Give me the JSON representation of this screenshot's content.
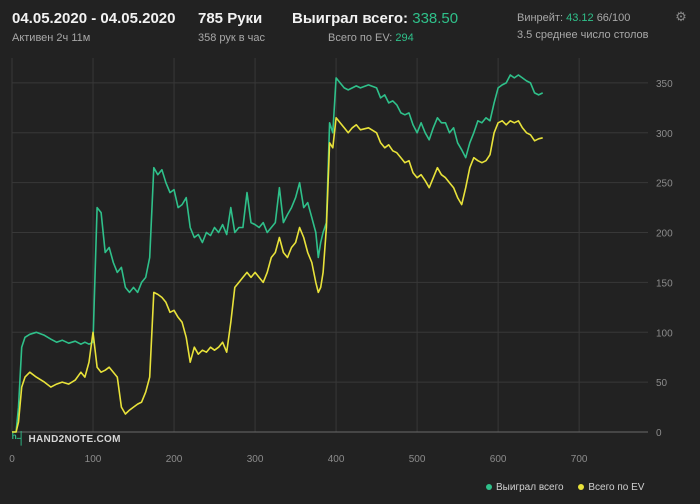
{
  "header": {
    "date_range": "04.05.2020 - 04.05.2020",
    "active": "Активен 2ч 11м",
    "hands": "785 Руки",
    "hands_per_hour": "358 рук в час",
    "won_label": "Выиграл всего:",
    "won_value": "338.50",
    "ev_label": "Всего по EV:",
    "ev_value": "294",
    "winrate_label": "Винрейт:",
    "winrate_value": "43.12",
    "winrate_rest": "66/100",
    "tables": "3.5 среднее число столов"
  },
  "logo_text": "HAND2NOTE.COM",
  "colors": {
    "background": "#222222",
    "won_series": "#2fc08a",
    "ev_series": "#e8e23a",
    "grid": "#383838",
    "zero_line": "#6a6a6a",
    "tick_text": "#8c8c8c"
  },
  "icons": {
    "settings": "gear-icon",
    "logo": "hand2note-logo-icon"
  },
  "chart_data": {
    "type": "line",
    "title": "",
    "xlabel": "",
    "ylabel": "",
    "xlim": [
      0,
      785
    ],
    "ylim": [
      0,
      375
    ],
    "xticks": [
      0,
      100,
      200,
      300,
      400,
      500,
      600,
      700
    ],
    "yticks": [
      0,
      50,
      100,
      150,
      200,
      250,
      300,
      350
    ],
    "y_axis_side": "right",
    "grid": true,
    "legend": "bottom-right",
    "series": [
      {
        "name": "Выиграл всего",
        "color": "#2fc08a",
        "points": [
          [
            0,
            0
          ],
          [
            5,
            0
          ],
          [
            8,
            25
          ],
          [
            12,
            85
          ],
          [
            16,
            95
          ],
          [
            22,
            98
          ],
          [
            30,
            100
          ],
          [
            40,
            97
          ],
          [
            48,
            93
          ],
          [
            55,
            90
          ],
          [
            62,
            92
          ],
          [
            70,
            89
          ],
          [
            78,
            91
          ],
          [
            85,
            88
          ],
          [
            90,
            90
          ],
          [
            95,
            88
          ],
          [
            100,
            90
          ],
          [
            105,
            225
          ],
          [
            110,
            220
          ],
          [
            115,
            180
          ],
          [
            120,
            185
          ],
          [
            125,
            170
          ],
          [
            130,
            160
          ],
          [
            135,
            165
          ],
          [
            140,
            145
          ],
          [
            145,
            140
          ],
          [
            150,
            145
          ],
          [
            155,
            140
          ],
          [
            160,
            150
          ],
          [
            165,
            155
          ],
          [
            170,
            175
          ],
          [
            175,
            265
          ],
          [
            180,
            258
          ],
          [
            185,
            263
          ],
          [
            190,
            250
          ],
          [
            195,
            240
          ],
          [
            200,
            243
          ],
          [
            205,
            225
          ],
          [
            210,
            228
          ],
          [
            215,
            235
          ],
          [
            220,
            205
          ],
          [
            225,
            195
          ],
          [
            230,
            198
          ],
          [
            235,
            190
          ],
          [
            240,
            200
          ],
          [
            245,
            197
          ],
          [
            250,
            205
          ],
          [
            255,
            200
          ],
          [
            260,
            208
          ],
          [
            265,
            198
          ],
          [
            270,
            225
          ],
          [
            275,
            200
          ],
          [
            280,
            205
          ],
          [
            285,
            205
          ],
          [
            290,
            240
          ],
          [
            295,
            210
          ],
          [
            300,
            208
          ],
          [
            305,
            205
          ],
          [
            310,
            210
          ],
          [
            315,
            200
          ],
          [
            320,
            205
          ],
          [
            325,
            210
          ],
          [
            330,
            245
          ],
          [
            335,
            210
          ],
          [
            340,
            218
          ],
          [
            345,
            225
          ],
          [
            350,
            235
          ],
          [
            355,
            250
          ],
          [
            360,
            225
          ],
          [
            365,
            230
          ],
          [
            370,
            215
          ],
          [
            375,
            200
          ],
          [
            378,
            175
          ],
          [
            381,
            190
          ],
          [
            384,
            200
          ],
          [
            388,
            210
          ],
          [
            392,
            310
          ],
          [
            396,
            300
          ],
          [
            400,
            355
          ],
          [
            405,
            350
          ],
          [
            410,
            345
          ],
          [
            415,
            343
          ],
          [
            420,
            345
          ],
          [
            425,
            347
          ],
          [
            430,
            345
          ],
          [
            440,
            348
          ],
          [
            450,
            345
          ],
          [
            455,
            335
          ],
          [
            460,
            338
          ],
          [
            465,
            330
          ],
          [
            470,
            332
          ],
          [
            475,
            328
          ],
          [
            480,
            320
          ],
          [
            485,
            318
          ],
          [
            490,
            320
          ],
          [
            495,
            308
          ],
          [
            500,
            300
          ],
          [
            505,
            310
          ],
          [
            510,
            300
          ],
          [
            515,
            293
          ],
          [
            520,
            305
          ],
          [
            525,
            315
          ],
          [
            530,
            310
          ],
          [
            535,
            310
          ],
          [
            540,
            300
          ],
          [
            545,
            305
          ],
          [
            550,
            290
          ],
          [
            555,
            283
          ],
          [
            560,
            275
          ],
          [
            565,
            290
          ],
          [
            570,
            300
          ],
          [
            575,
            312
          ],
          [
            580,
            310
          ],
          [
            585,
            315
          ],
          [
            590,
            312
          ],
          [
            595,
            330
          ],
          [
            600,
            345
          ],
          [
            605,
            348
          ],
          [
            610,
            350
          ],
          [
            615,
            358
          ],
          [
            620,
            355
          ],
          [
            625,
            358
          ],
          [
            630,
            355
          ],
          [
            635,
            352
          ],
          [
            640,
            350
          ],
          [
            645,
            340
          ],
          [
            650,
            338
          ],
          [
            655,
            340
          ]
        ]
      },
      {
        "name": "Всего по EV",
        "color": "#e8e23a",
        "points": [
          [
            0,
            0
          ],
          [
            5,
            0
          ],
          [
            8,
            10
          ],
          [
            12,
            45
          ],
          [
            16,
            55
          ],
          [
            22,
            60
          ],
          [
            30,
            55
          ],
          [
            40,
            50
          ],
          [
            48,
            45
          ],
          [
            55,
            48
          ],
          [
            62,
            50
          ],
          [
            70,
            48
          ],
          [
            78,
            52
          ],
          [
            85,
            60
          ],
          [
            90,
            55
          ],
          [
            95,
            70
          ],
          [
            100,
            100
          ],
          [
            105,
            65
          ],
          [
            110,
            60
          ],
          [
            115,
            62
          ],
          [
            120,
            65
          ],
          [
            125,
            60
          ],
          [
            130,
            55
          ],
          [
            135,
            25
          ],
          [
            140,
            18
          ],
          [
            145,
            22
          ],
          [
            150,
            25
          ],
          [
            155,
            28
          ],
          [
            160,
            30
          ],
          [
            165,
            40
          ],
          [
            170,
            55
          ],
          [
            175,
            140
          ],
          [
            180,
            138
          ],
          [
            185,
            135
          ],
          [
            190,
            130
          ],
          [
            195,
            120
          ],
          [
            200,
            122
          ],
          [
            205,
            115
          ],
          [
            210,
            110
          ],
          [
            215,
            95
          ],
          [
            220,
            70
          ],
          [
            225,
            85
          ],
          [
            230,
            78
          ],
          [
            235,
            82
          ],
          [
            240,
            80
          ],
          [
            245,
            85
          ],
          [
            250,
            82
          ],
          [
            255,
            85
          ],
          [
            260,
            90
          ],
          [
            265,
            80
          ],
          [
            270,
            110
          ],
          [
            275,
            145
          ],
          [
            280,
            150
          ],
          [
            285,
            155
          ],
          [
            290,
            160
          ],
          [
            295,
            155
          ],
          [
            300,
            160
          ],
          [
            305,
            155
          ],
          [
            310,
            150
          ],
          [
            315,
            160
          ],
          [
            320,
            175
          ],
          [
            325,
            180
          ],
          [
            330,
            195
          ],
          [
            335,
            180
          ],
          [
            340,
            175
          ],
          [
            345,
            185
          ],
          [
            350,
            190
          ],
          [
            355,
            205
          ],
          [
            360,
            195
          ],
          [
            365,
            180
          ],
          [
            370,
            170
          ],
          [
            375,
            150
          ],
          [
            378,
            140
          ],
          [
            381,
            145
          ],
          [
            384,
            160
          ],
          [
            388,
            205
          ],
          [
            392,
            290
          ],
          [
            396,
            285
          ],
          [
            400,
            315
          ],
          [
            405,
            310
          ],
          [
            410,
            305
          ],
          [
            415,
            300
          ],
          [
            420,
            305
          ],
          [
            425,
            308
          ],
          [
            430,
            303
          ],
          [
            440,
            305
          ],
          [
            450,
            300
          ],
          [
            455,
            290
          ],
          [
            460,
            285
          ],
          [
            465,
            288
          ],
          [
            470,
            282
          ],
          [
            475,
            280
          ],
          [
            480,
            275
          ],
          [
            485,
            270
          ],
          [
            490,
            272
          ],
          [
            495,
            260
          ],
          [
            500,
            255
          ],
          [
            505,
            258
          ],
          [
            510,
            252
          ],
          [
            515,
            245
          ],
          [
            520,
            255
          ],
          [
            525,
            265
          ],
          [
            530,
            258
          ],
          [
            535,
            255
          ],
          [
            540,
            250
          ],
          [
            545,
            245
          ],
          [
            550,
            235
          ],
          [
            555,
            228
          ],
          [
            560,
            245
          ],
          [
            565,
            265
          ],
          [
            570,
            275
          ],
          [
            575,
            272
          ],
          [
            580,
            270
          ],
          [
            585,
            272
          ],
          [
            590,
            278
          ],
          [
            595,
            300
          ],
          [
            600,
            310
          ],
          [
            605,
            312
          ],
          [
            610,
            308
          ],
          [
            615,
            312
          ],
          [
            620,
            310
          ],
          [
            625,
            312
          ],
          [
            630,
            305
          ],
          [
            635,
            300
          ],
          [
            640,
            298
          ],
          [
            645,
            292
          ],
          [
            650,
            294
          ],
          [
            655,
            295
          ]
        ]
      }
    ]
  }
}
